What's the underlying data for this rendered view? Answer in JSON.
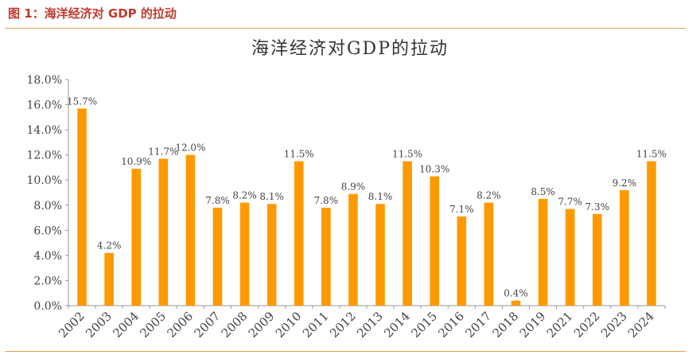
{
  "caption": "图 1：海洋经济对 GDP 的拉动",
  "chart_data": {
    "type": "bar",
    "title": "海洋经济对GDP的拉动",
    "xlabel": "",
    "ylabel": "",
    "ylim": [
      0,
      18
    ],
    "yticks": [
      "0.0%",
      "2.0%",
      "4.0%",
      "6.0%",
      "8.0%",
      "10.0%",
      "12.0%",
      "14.0%",
      "16.0%",
      "18.0%"
    ],
    "ytick_values": [
      0,
      2,
      4,
      6,
      8,
      10,
      12,
      14,
      16,
      18
    ],
    "categories": [
      "2002",
      "2003",
      "2004",
      "2005",
      "2006",
      "2007",
      "2008",
      "2009",
      "2010",
      "2011",
      "2012",
      "2013",
      "2014",
      "2015",
      "2016",
      "2017",
      "2018",
      "2019",
      "2021",
      "2022",
      "2023",
      "2024"
    ],
    "values": [
      15.7,
      4.2,
      10.9,
      11.7,
      12.0,
      7.8,
      8.2,
      8.1,
      11.5,
      7.8,
      8.9,
      8.1,
      11.5,
      10.3,
      7.1,
      8.2,
      0.4,
      8.5,
      7.7,
      7.3,
      9.2,
      11.5
    ],
    "labels": [
      "15.7%",
      "4.2%",
      "10.9%",
      "11.7%",
      "12.0%",
      "7.8%",
      "8.2%",
      "8.1%",
      "11.5%",
      "7.8%",
      "8.9%",
      "8.1%",
      "11.5%",
      "10.3%",
      "7.1%",
      "8.2%",
      "0.4%",
      "8.5%",
      "7.7%",
      "7.3%",
      "9.2%",
      "11.5%"
    ],
    "bar_color": "#ff9900",
    "legend": false,
    "grid": false
  }
}
